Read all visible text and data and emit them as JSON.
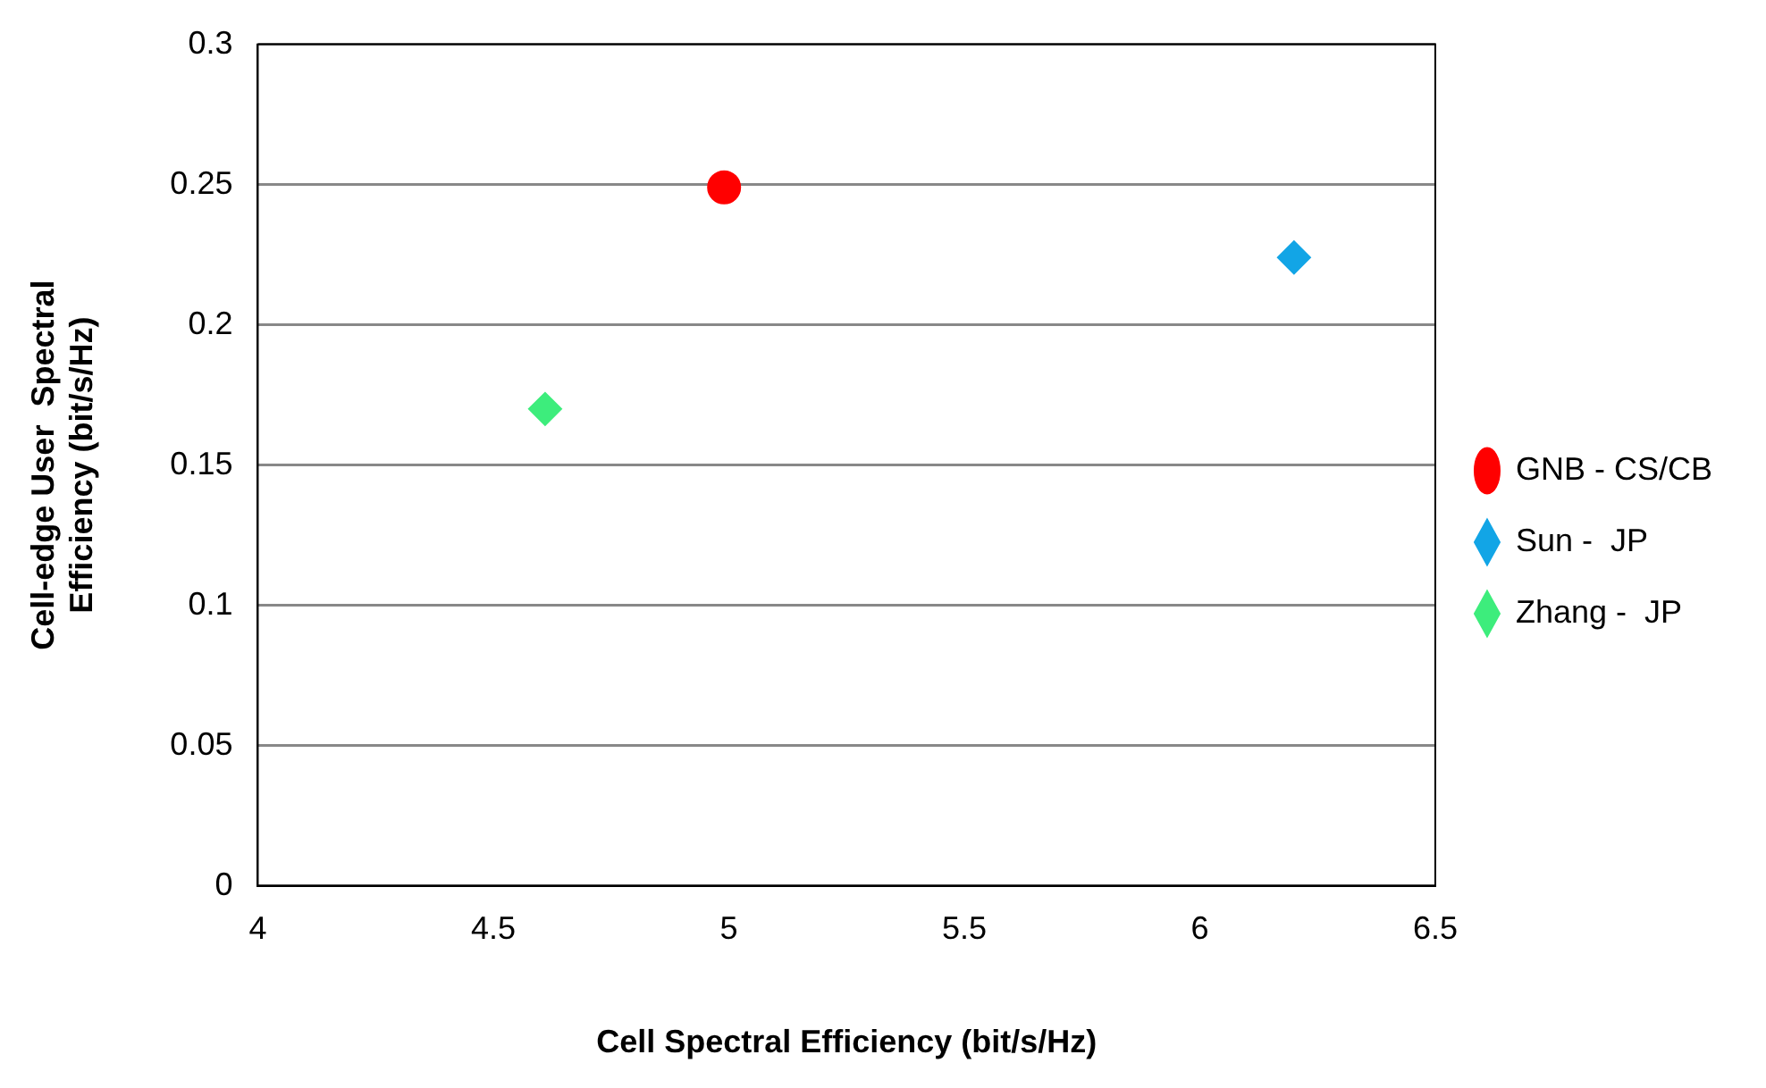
{
  "chart_data": {
    "type": "scatter",
    "xlabel": "Cell Spectral Efficiency (bit/s/Hz)",
    "ylabel": "Cell-edge User  Spectral\nEfficiency (bit/s/Hz)",
    "xlim": [
      4,
      6.5
    ],
    "xticks": [
      4,
      4.5,
      5,
      5.5,
      6,
      6.5
    ],
    "ylim": [
      0,
      0.3
    ],
    "yticks": [
      0,
      0.05,
      0.1,
      0.15,
      0.2,
      0.25,
      0.3
    ],
    "grid": "y",
    "legend": "right",
    "series": [
      {
        "name": "GNB - CS/CB",
        "color": "#ff0000",
        "marker": "circle",
        "x": [
          4.99
        ],
        "values": [
          0.249
        ]
      },
      {
        "name": "Sun -  JP",
        "color": "#12a5e6",
        "marker": "diamond",
        "x": [
          6.2
        ],
        "values": [
          0.224
        ]
      },
      {
        "name": "Zhang -  JP",
        "color": "#3ded7c",
        "marker": "diamond",
        "x": [
          4.61
        ],
        "values": [
          0.17
        ]
      }
    ]
  }
}
